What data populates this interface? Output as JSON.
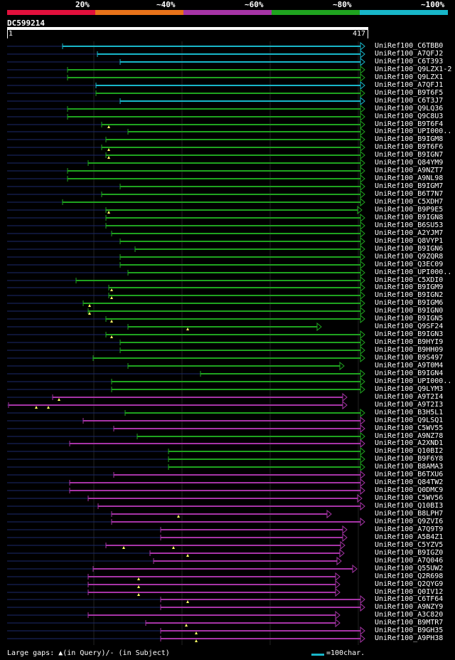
{
  "legend": [
    {
      "label": "20%",
      "color": "#e2103c"
    },
    {
      "label": "~40%",
      "color": "#e8731a"
    },
    {
      "label": "~60%",
      "color": "#a634a6"
    },
    {
      "label": "~80%",
      "color": "#1fa31f"
    },
    {
      "label": "~100%",
      "color": "#18b6c9"
    }
  ],
  "query": {
    "id": "DC599214",
    "start": "1",
    "end": "417"
  },
  "hits": [
    {
      "name": "UniRef100_C6TBB0",
      "color": "cyan",
      "start": 88,
      "end": 513,
      "gaps": []
    },
    {
      "name": "UniRef100_A7QFJ2",
      "color": "cyan",
      "start": 137,
      "end": 513,
      "gaps": []
    },
    {
      "name": "UniRef100_C6T393",
      "color": "cyan",
      "start": 169,
      "end": 513,
      "gaps": []
    },
    {
      "name": "UniRef100_Q9LZX1-2",
      "color": "green",
      "start": 95,
      "end": 513,
      "gaps": []
    },
    {
      "name": "UniRef100_Q9LZX1",
      "color": "green",
      "start": 95,
      "end": 513,
      "gaps": []
    },
    {
      "name": "UniRef100_A7QFJ1",
      "color": "cyan",
      "start": 135,
      "end": 513,
      "gaps": []
    },
    {
      "name": "UniRef100_B9T6F5",
      "color": "green",
      "start": 135,
      "end": 513,
      "gaps": []
    },
    {
      "name": "UniRef100_C6T3J7",
      "color": "cyan",
      "start": 169,
      "end": 513,
      "gaps": []
    },
    {
      "name": "UniRef100_Q9LQ36",
      "color": "green",
      "start": 95,
      "end": 513,
      "gaps": []
    },
    {
      "name": "UniRef100_Q9C8U3",
      "color": "green",
      "start": 95,
      "end": 513,
      "gaps": []
    },
    {
      "name": "UniRef100_B9T6F4",
      "color": "green",
      "start": 143,
      "end": 513,
      "gaps": [
        153
      ]
    },
    {
      "name": "UniRef100_UPI000..",
      "color": "green",
      "start": 180,
      "end": 513,
      "gaps": []
    },
    {
      "name": "UniRef100_B9IGM8",
      "color": "green",
      "start": 149,
      "end": 513,
      "gaps": []
    },
    {
      "name": "UniRef100_B9T6F6",
      "color": "green",
      "start": 143,
      "end": 513,
      "gaps": [
        153
      ]
    },
    {
      "name": "UniRef100_B9IGN7",
      "color": "green",
      "start": 149,
      "end": 513,
      "gaps": [
        153
      ]
    },
    {
      "name": "UniRef100_Q84YM9",
      "color": "green",
      "start": 124,
      "end": 513,
      "gaps": []
    },
    {
      "name": "UniRef100_A9NZT7",
      "color": "green",
      "start": 95,
      "end": 513,
      "gaps": []
    },
    {
      "name": "UniRef100_A9NL98",
      "color": "green",
      "start": 95,
      "end": 513,
      "gaps": []
    },
    {
      "name": "UniRef100_B9IGM7",
      "color": "green",
      "start": 169,
      "end": 513,
      "gaps": []
    },
    {
      "name": "UniRef100_B6T7N7",
      "color": "green",
      "start": 143,
      "end": 513,
      "gaps": []
    },
    {
      "name": "UniRef100_C5XDH7",
      "color": "green",
      "start": 88,
      "end": 513,
      "gaps": []
    },
    {
      "name": "UniRef100_B9P9E5",
      "color": "green",
      "start": 149,
      "end": 509,
      "gaps": [
        153
      ]
    },
    {
      "name": "UniRef100_B9IGN8",
      "color": "green",
      "start": 149,
      "end": 513,
      "gaps": []
    },
    {
      "name": "UniRef100_B6SU53",
      "color": "green",
      "start": 149,
      "end": 513,
      "gaps": []
    },
    {
      "name": "UniRef100_A2YJM7",
      "color": "green",
      "start": 157,
      "end": 513,
      "gaps": []
    },
    {
      "name": "UniRef100_Q8VYP1",
      "color": "green",
      "start": 169,
      "end": 513,
      "gaps": []
    },
    {
      "name": "UniRef100_B9IGN6",
      "color": "green",
      "start": 190,
      "end": 513,
      "gaps": []
    },
    {
      "name": "UniRef100_Q9ZQR8",
      "color": "green",
      "start": 169,
      "end": 513,
      "gaps": []
    },
    {
      "name": "UniRef100_Q3EC09",
      "color": "green",
      "start": 169,
      "end": 513,
      "gaps": []
    },
    {
      "name": "UniRef100_UPI000..",
      "color": "green",
      "start": 180,
      "end": 513,
      "gaps": []
    },
    {
      "name": "UniRef100_C5XDI0",
      "color": "green",
      "start": 107,
      "end": 513,
      "gaps": []
    },
    {
      "name": "UniRef100_B9IGM9",
      "color": "green",
      "start": 153,
      "end": 513,
      "gaps": [
        157
      ]
    },
    {
      "name": "UniRef100_B9IGN2",
      "color": "green",
      "start": 153,
      "end": 513,
      "gaps": [
        157
      ]
    },
    {
      "name": "UniRef100_B9IGM6",
      "color": "green",
      "start": 117,
      "end": 513,
      "gaps": [
        126
      ]
    },
    {
      "name": "UniRef100_B9IGN0",
      "color": "green",
      "start": 124,
      "end": 513,
      "gaps": [
        126
      ]
    },
    {
      "name": "UniRef100_B9IGN5",
      "color": "green",
      "start": 149,
      "end": 513,
      "gaps": [
        157
      ]
    },
    {
      "name": "UniRef100_Q9SF24",
      "color": "green",
      "start": 180,
      "end": 452,
      "gaps": [
        264
      ]
    },
    {
      "name": "UniRef100_B9IGN3",
      "color": "green",
      "start": 149,
      "end": 513,
      "gaps": [
        157
      ]
    },
    {
      "name": "UniRef100_B9HYI9",
      "color": "green",
      "start": 169,
      "end": 513,
      "gaps": []
    },
    {
      "name": "UniRef100_B9HH09",
      "color": "green",
      "start": 169,
      "end": 513,
      "gaps": []
    },
    {
      "name": "UniRef100_B9S497",
      "color": "green",
      "start": 131,
      "end": 513,
      "gaps": []
    },
    {
      "name": "UniRef100_A9T0M4",
      "color": "green",
      "start": 180,
      "end": 484,
      "gaps": []
    },
    {
      "name": "UniRef100_B9IGN4",
      "color": "green",
      "start": 282,
      "end": 513,
      "gaps": []
    },
    {
      "name": "UniRef100_UPI000..",
      "color": "green",
      "start": 157,
      "end": 513,
      "gaps": []
    },
    {
      "name": "UniRef100_Q9LYM3",
      "color": "green",
      "start": 157,
      "end": 513,
      "gaps": []
    },
    {
      "name": "UniRef100_A9T2I4",
      "color": "magenta",
      "start": 74,
      "end": 488,
      "gaps": [
        83
      ]
    },
    {
      "name": "UniRef100_A9T2I3",
      "color": "magenta",
      "start": 12,
      "end": 488,
      "gaps": [
        51,
        68
      ]
    },
    {
      "name": "UniRef100_B3H5L1",
      "color": "green",
      "start": 176,
      "end": 513,
      "gaps": []
    },
    {
      "name": "UniRef100_Q9LSQ1",
      "color": "magenta",
      "start": 117,
      "end": 513,
      "gaps": []
    },
    {
      "name": "UniRef100_C5WV55",
      "color": "magenta",
      "start": 160,
      "end": 513,
      "gaps": []
    },
    {
      "name": "UniRef100_A9NZ78",
      "color": "green",
      "start": 193,
      "end": 513,
      "gaps": []
    },
    {
      "name": "UniRef100_A2XND1",
      "color": "magenta",
      "start": 98,
      "end": 513,
      "gaps": []
    },
    {
      "name": "UniRef100_Q10BI2",
      "color": "green",
      "start": 237,
      "end": 513,
      "gaps": []
    },
    {
      "name": "UniRef100_B9F6Y8",
      "color": "green",
      "start": 237,
      "end": 513,
      "gaps": []
    },
    {
      "name": "UniRef100_B8AMA3",
      "color": "green",
      "start": 237,
      "end": 513,
      "gaps": []
    },
    {
      "name": "UniRef100_B6TXU6",
      "color": "magenta",
      "start": 160,
      "end": 513,
      "gaps": []
    },
    {
      "name": "UniRef100_Q84TW2",
      "color": "magenta",
      "start": 98,
      "end": 513,
      "gaps": []
    },
    {
      "name": "UniRef100_Q0DMC9",
      "color": "magenta",
      "start": 98,
      "end": 513,
      "gaps": []
    },
    {
      "name": "UniRef100_C5WV56",
      "color": "magenta",
      "start": 124,
      "end": 509,
      "gaps": []
    },
    {
      "name": "UniRef100_Q10BI3",
      "color": "magenta",
      "start": 138,
      "end": 513,
      "gaps": []
    },
    {
      "name": "UniRef100_B8LPH7",
      "color": "magenta",
      "start": 157,
      "end": 466,
      "gaps": [
        251
      ]
    },
    {
      "name": "UniRef100_Q9ZVI6",
      "color": "magenta",
      "start": 157,
      "end": 513,
      "gaps": []
    },
    {
      "name": "UniRef100_A7Q9T9",
      "color": "magenta",
      "start": 226,
      "end": 488,
      "gaps": []
    },
    {
      "name": "UniRef100_A5B4Z1",
      "color": "magenta",
      "start": 226,
      "end": 488,
      "gaps": []
    },
    {
      "name": "UniRef100_C5YZV5",
      "color": "magenta",
      "start": 149,
      "end": 485,
      "gaps": [
        174,
        244
      ]
    },
    {
      "name": "UniRef100_B9IGZ0",
      "color": "magenta",
      "start": 211,
      "end": 484,
      "gaps": [
        264
      ]
    },
    {
      "name": "UniRef100_A7Q046",
      "color": "magenta",
      "start": 216,
      "end": 480,
      "gaps": []
    },
    {
      "name": "UniRef100_Q55UW2",
      "color": "magenta",
      "start": 131,
      "end": 502,
      "gaps": []
    },
    {
      "name": "UniRef100_Q2R698",
      "color": "magenta",
      "start": 124,
      "end": 478,
      "gaps": [
        195
      ]
    },
    {
      "name": "UniRef100_Q2QYG9",
      "color": "magenta",
      "start": 124,
      "end": 478,
      "gaps": [
        195
      ]
    },
    {
      "name": "UniRef100_Q0IV12",
      "color": "magenta",
      "start": 124,
      "end": 478,
      "gaps": [
        195
      ]
    },
    {
      "name": "UniRef100_C6TF64",
      "color": "magenta",
      "start": 226,
      "end": 513,
      "gaps": [
        264
      ]
    },
    {
      "name": "UniRef100_A9NZY9",
      "color": "magenta",
      "start": 226,
      "end": 513,
      "gaps": []
    },
    {
      "name": "UniRef100_A3C820",
      "color": "magenta",
      "start": 124,
      "end": 478,
      "gaps": []
    },
    {
      "name": "UniRef100_B9MTR7",
      "color": "magenta",
      "start": 205,
      "end": 478,
      "gaps": [
        262
      ]
    },
    {
      "name": "UniRef100_B9GH35",
      "color": "magenta",
      "start": 226,
      "end": 513,
      "gaps": [
        276
      ]
    },
    {
      "name": "UniRef100_A9PH38",
      "color": "magenta",
      "start": 226,
      "end": 513,
      "gaps": [
        276
      ]
    }
  ],
  "footer": {
    "gaps_note": "Large gaps: ▲(in Query)/- (in Subject)",
    "scale_note": "=100char."
  },
  "colors": {
    "cyan": "#18b6c9",
    "green": "#1fa31f",
    "magenta": "#a634a6",
    "stub": "#1b2a6b",
    "grid": "#1a1a1a",
    "gap_marker": "#ffff66"
  }
}
